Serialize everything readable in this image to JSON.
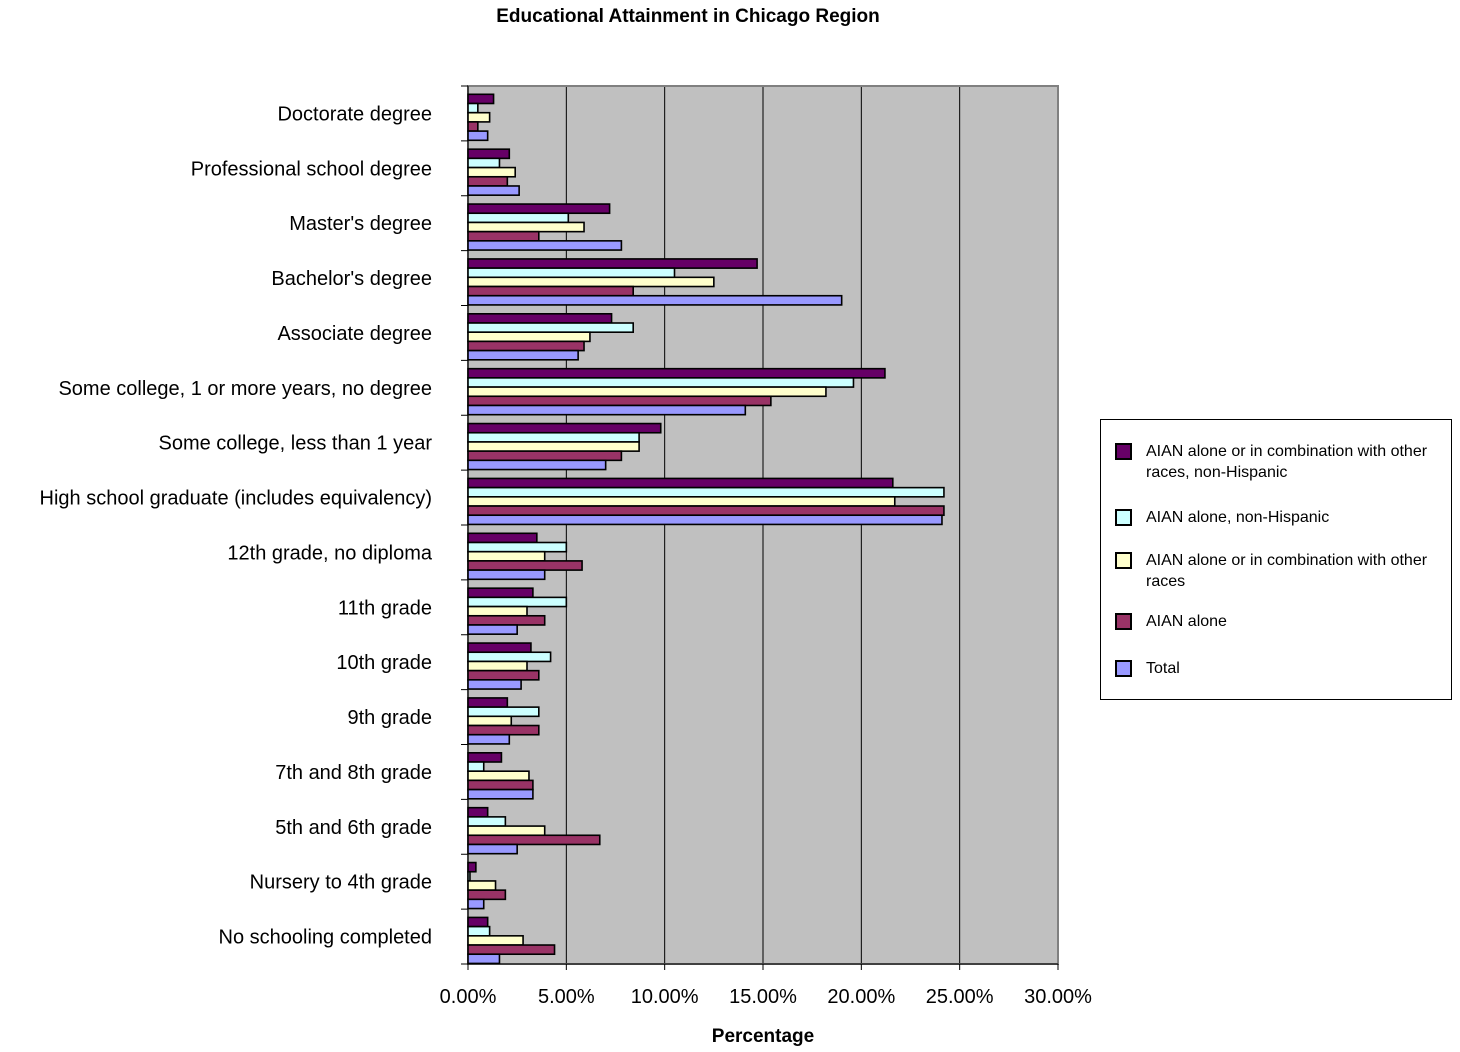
{
  "chart_data": {
    "type": "bar",
    "orientation": "horizontal",
    "title": "Educational Attainment in Chicago Region",
    "xlabel": "Percentage",
    "ylabel": "",
    "xlim": [
      0,
      30
    ],
    "xticks": [
      "0.00%",
      "5.00%",
      "10.00%",
      "15.00%",
      "20.00%",
      "25.00%",
      "30.00%"
    ],
    "grid": true,
    "legend_position": "right",
    "categories": [
      "Doctorate degree",
      "Professional school degree",
      "Master's degree",
      "Bachelor's degree",
      "Associate degree",
      "Some college, 1 or more years, no degree",
      "Some college, less than 1 year",
      "High school graduate (includes equivalency)",
      "12th grade, no diploma",
      "11th grade",
      "10th grade",
      "9th grade",
      "7th and 8th grade",
      "5th and 6th grade",
      "Nursery to 4th grade",
      "No schooling completed"
    ],
    "series": [
      {
        "name": "AIAN alone or in combination with other races, non-Hispanic",
        "color": "#660066",
        "values": [
          1.3,
          2.1,
          7.2,
          14.7,
          7.3,
          21.2,
          9.8,
          21.6,
          3.5,
          3.3,
          3.2,
          2.0,
          1.7,
          1.0,
          0.4,
          1.0
        ]
      },
      {
        "name": "AIAN alone, non-Hispanic",
        "color": "#ccffff",
        "values": [
          0.5,
          1.6,
          5.1,
          10.5,
          8.4,
          19.6,
          8.7,
          24.2,
          5.0,
          5.0,
          4.2,
          3.6,
          0.8,
          1.9,
          0.1,
          1.1
        ]
      },
      {
        "name": "AIAN alone or in combination with other races",
        "color": "#ffffcc",
        "values": [
          1.1,
          2.4,
          5.9,
          12.5,
          6.2,
          18.2,
          8.7,
          21.7,
          3.9,
          3.0,
          3.0,
          2.2,
          3.1,
          3.9,
          1.4,
          2.8
        ]
      },
      {
        "name": "AIAN alone",
        "color": "#993366",
        "values": [
          0.5,
          2.0,
          3.6,
          8.4,
          5.9,
          15.4,
          7.8,
          24.2,
          5.8,
          3.9,
          3.6,
          3.6,
          3.3,
          6.7,
          1.9,
          4.4
        ]
      },
      {
        "name": "Total",
        "color": "#9999ff",
        "values": [
          1.0,
          2.6,
          7.8,
          19.0,
          5.6,
          14.1,
          7.0,
          24.1,
          3.9,
          2.5,
          2.7,
          2.1,
          3.3,
          2.5,
          0.8,
          1.6
        ]
      }
    ]
  }
}
